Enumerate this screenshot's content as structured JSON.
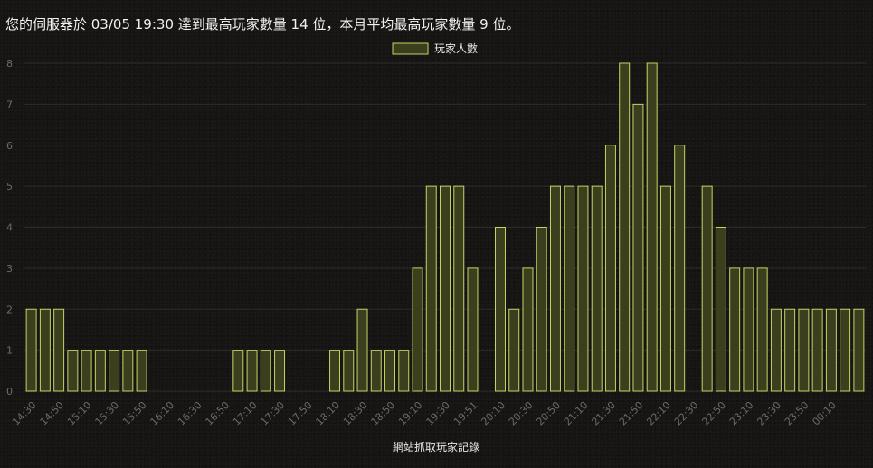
{
  "header": {
    "text": "您的伺服器於 03/05 19:30 達到最高玩家數量 14 位，本月平均最高玩家數量 9 位。"
  },
  "colors": {
    "bar_fill": "#3b3f1e",
    "bar_stroke": "#c7d265",
    "grid": "#2c2c2c",
    "text": "#6a6a6a"
  },
  "chart_data": {
    "type": "bar",
    "xlabel": "網站抓取玩家記錄",
    "ylabel": "",
    "ylim": [
      0,
      8
    ],
    "yticks": [
      0,
      1,
      2,
      3,
      4,
      5,
      6,
      7,
      8
    ],
    "grid": true,
    "legend": "top-center",
    "series": [
      {
        "name": "玩家人數",
        "values": [
          2,
          2,
          2,
          1,
          1,
          1,
          1,
          1,
          1,
          0,
          0,
          0,
          0,
          0,
          0,
          1,
          1,
          1,
          1,
          0,
          0,
          0,
          1,
          1,
          2,
          1,
          1,
          1,
          3,
          5,
          5,
          5,
          3,
          0,
          4,
          2,
          3,
          4,
          5,
          5,
          5,
          5,
          6,
          8,
          7,
          8,
          5,
          6,
          0,
          5,
          4,
          3,
          3,
          3,
          2,
          2,
          2,
          2,
          2,
          2,
          2
        ]
      }
    ],
    "categories": [
      "14:30",
      "14:40",
      "14:50",
      "15:00",
      "15:10",
      "15:20",
      "15:30",
      "15:40",
      "15:50",
      "16:00",
      "16:10",
      "16:20",
      "16:30",
      "16:40",
      "16:50",
      "17:00",
      "17:10",
      "17:20",
      "17:30",
      "17:40",
      "17:50",
      "18:00",
      "18:10",
      "18:20",
      "18:30",
      "18:40",
      "18:50",
      "19:00",
      "19:10",
      "19:20",
      "19:30",
      "19:40",
      "19:51",
      "20:00",
      "20:10",
      "20:20",
      "20:30",
      "20:40",
      "20:50",
      "21:00",
      "21:10",
      "21:20",
      "21:30",
      "21:40",
      "21:50",
      "22:00",
      "22:10",
      "22:20",
      "22:30",
      "22:40",
      "22:50",
      "23:00",
      "23:10",
      "23:20",
      "23:30",
      "23:40",
      "23:50",
      "00:00",
      "00:10",
      "00:20",
      "00:30"
    ],
    "xtick_labels": [
      {
        "index": 0,
        "label": "14:30"
      },
      {
        "index": 2,
        "label": "14:50"
      },
      {
        "index": 4,
        "label": "15:10"
      },
      {
        "index": 6,
        "label": "15:30"
      },
      {
        "index": 8,
        "label": "15:50"
      },
      {
        "index": 10,
        "label": "16:10"
      },
      {
        "index": 12,
        "label": "16:30"
      },
      {
        "index": 14,
        "label": "16:50"
      },
      {
        "index": 16,
        "label": "17:10"
      },
      {
        "index": 18,
        "label": "17:30"
      },
      {
        "index": 20,
        "label": "17:50"
      },
      {
        "index": 22,
        "label": "18:10"
      },
      {
        "index": 24,
        "label": "18:30"
      },
      {
        "index": 26,
        "label": "18:50"
      },
      {
        "index": 28,
        "label": "19:10"
      },
      {
        "index": 30,
        "label": "19:30"
      },
      {
        "index": 32,
        "label": "19:51"
      },
      {
        "index": 34,
        "label": "20:10"
      },
      {
        "index": 36,
        "label": "20:30"
      },
      {
        "index": 38,
        "label": "20:50"
      },
      {
        "index": 40,
        "label": "21:10"
      },
      {
        "index": 42,
        "label": "21:30"
      },
      {
        "index": 44,
        "label": "21:50"
      },
      {
        "index": 46,
        "label": "22:10"
      },
      {
        "index": 48,
        "label": "22:30"
      },
      {
        "index": 50,
        "label": "22:50"
      },
      {
        "index": 52,
        "label": "23:10"
      },
      {
        "index": 54,
        "label": "23:30"
      },
      {
        "index": 56,
        "label": "23:50"
      },
      {
        "index": 58,
        "label": "00:10"
      }
    ]
  }
}
